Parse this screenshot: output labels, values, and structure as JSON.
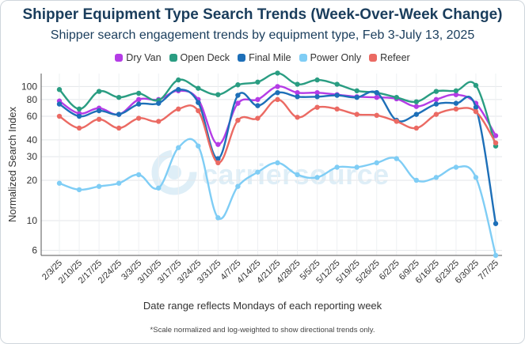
{
  "chart_data": {
    "type": "line",
    "title": "Shipper Equipment Type Search Trends (Week-Over-Week Change)",
    "subtitle": "Shipper search engagement trends by equipment type, Feb 3-July 13, 2025",
    "xlabel": "Date range reflects Mondays of each reporting week",
    "ylabel": "Normalized Search Index",
    "y_scale": "log",
    "ylim": [
      5.5,
      125
    ],
    "yticks": [
      "6",
      "10",
      "20",
      "30",
      "40",
      "60",
      "80",
      "100"
    ],
    "grid": true,
    "legend_position": "top-center",
    "footnote": "*Scale normalized and log-weighted to show directional trends only.",
    "watermark": "carriersource",
    "categories": [
      "2/3/25",
      "2/10/25",
      "2/17/25",
      "2/24/25",
      "3/3/25",
      "3/10/25",
      "3/17/25",
      "3/24/25",
      "3/31/25",
      "4/7/25",
      "4/14/25",
      "4/21/25",
      "4/28/25",
      "5/5/25",
      "5/12/25",
      "5/19/25",
      "5/26/25",
      "6/2/25",
      "6/9/25",
      "6/16/25",
      "6/23/25",
      "6/30/25",
      "7/7/25"
    ],
    "series": [
      {
        "name": "Dry Van",
        "color": "#b43ce6",
        "values": [
          78,
          63,
          69,
          62,
          80,
          80,
          93,
          80,
          37,
          75,
          80,
          100,
          90,
          90,
          87,
          84,
          83,
          81,
          71,
          80,
          87,
          75,
          43
        ]
      },
      {
        "name": "Open Deck",
        "color": "#2a9d82",
        "values": [
          95,
          68,
          92,
          83,
          89,
          79,
          112,
          97,
          87,
          103,
          108,
          126,
          104,
          112,
          104,
          93,
          90,
          83,
          77,
          92,
          93,
          102,
          36
        ]
      },
      {
        "name": "Final Mile",
        "color": "#1d6fb8",
        "values": [
          74,
          60,
          66,
          62,
          74,
          75,
          95,
          76,
          29,
          86,
          72,
          90,
          84,
          84,
          86,
          83,
          90,
          56,
          62,
          74,
          75,
          70,
          9.5
        ]
      },
      {
        "name": "Power Only",
        "color": "#7fcdf5",
        "values": [
          19,
          17,
          18,
          19,
          22,
          17.5,
          35,
          36,
          10.5,
          18,
          23,
          27,
          22,
          21,
          25,
          25,
          27,
          29,
          20,
          21,
          25,
          21,
          5.5
        ]
      },
      {
        "name": "Refeer",
        "color": "#eb6a63",
        "values": [
          60,
          49,
          57,
          49,
          58,
          55,
          68,
          66,
          27,
          56,
          58,
          80,
          59,
          70,
          68,
          62,
          61,
          55,
          49,
          62,
          68,
          65,
          38
        ]
      }
    ]
  }
}
